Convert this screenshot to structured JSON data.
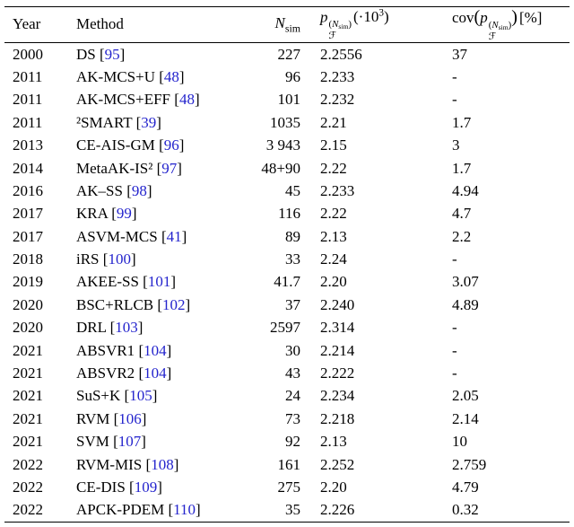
{
  "colors": {
    "citation": "#2424cd",
    "text": "#000000",
    "background": "#ffffff"
  },
  "table": {
    "headers": {
      "year": "Year",
      "method": "Method",
      "nsim": {
        "main": "N",
        "sub": "sim"
      },
      "pf": {
        "base": "p",
        "sub": "ℱ",
        "sup_open": "(",
        "sup_n": "N",
        "sup_nsub": "sim",
        "sup_close": ")",
        "tail_open": "(·10",
        "tail_exp": "3",
        "tail_close": ")"
      },
      "cov": {
        "fn": "cov",
        "open": "(",
        "base": "p",
        "sub": "ℱ",
        "sup_open": "(",
        "sup_n": "N",
        "sup_nsub": "sim",
        "sup_close": ")",
        "close": ")",
        "unit": "[%]"
      }
    },
    "rows": [
      {
        "year": "2000",
        "method": "DS",
        "cite": "95",
        "nsim": "227",
        "pf": "2.2556",
        "cov": "37"
      },
      {
        "year": "2011",
        "method": "AK-MCS+U",
        "cite": "48",
        "nsim": "96",
        "pf": "2.233",
        "cov": "-"
      },
      {
        "year": "2011",
        "method": "AK-MCS+EFF",
        "cite": "48",
        "nsim": "101",
        "pf": "2.232",
        "cov": "-"
      },
      {
        "year": "2011",
        "method": "²SMART",
        "cite": "39",
        "nsim": "1035",
        "pf": "2.21",
        "cov": "1.7"
      },
      {
        "year": "2013",
        "method": "CE-AIS-GM",
        "cite": "96",
        "nsim": "3 943",
        "pf": "2.15",
        "cov": "3"
      },
      {
        "year": "2014",
        "method": "MetaAK-IS²",
        "cite": "97",
        "nsim": "48+90",
        "pf": "2.22",
        "cov": "1.7"
      },
      {
        "year": "2016",
        "method": "AK–SS",
        "cite": "98",
        "nsim": "45",
        "pf": "2.233",
        "cov": "4.94"
      },
      {
        "year": "2017",
        "method": "KRA",
        "cite": "99",
        "nsim": "116",
        "pf": "2.22",
        "cov": "4.7"
      },
      {
        "year": "2017",
        "method": "ASVM-MCS",
        "cite": "41",
        "nsim": "89",
        "pf": "2.13",
        "cov": "2.2"
      },
      {
        "year": "2018",
        "method": "iRS",
        "cite": "100",
        "nsim": "33",
        "pf": "2.24",
        "cov": "-"
      },
      {
        "year": "2019",
        "method": "AKEE-SS",
        "cite": "101",
        "nsim": "41.7",
        "pf": "2.20",
        "cov": "3.07"
      },
      {
        "year": "2020",
        "method": "BSC+RLCB",
        "cite": "102",
        "nsim": "37",
        "pf": "2.240",
        "cov": "4.89"
      },
      {
        "year": "2020",
        "method": "DRL",
        "cite": "103",
        "nsim": "2597",
        "pf": "2.314",
        "cov": "-"
      },
      {
        "year": "2021",
        "method": "ABSVR1",
        "cite": "104",
        "nsim": "30",
        "pf": "2.214",
        "cov": "-"
      },
      {
        "year": "2021",
        "method": "ABSVR2",
        "cite": "104",
        "nsim": "43",
        "pf": "2.222",
        "cov": "-"
      },
      {
        "year": "2021",
        "method": "SuS+K",
        "cite": "105",
        "nsim": "24",
        "pf": "2.234",
        "cov": "2.05"
      },
      {
        "year": "2021",
        "method": "RVM",
        "cite": "106",
        "nsim": "73",
        "pf": "2.218",
        "cov": "2.14"
      },
      {
        "year": "2021",
        "method": "SVM",
        "cite": "107",
        "nsim": "92",
        "pf": "2.13",
        "cov": "10"
      },
      {
        "year": "2022",
        "method": "RVM-MIS",
        "cite": "108",
        "nsim": "161",
        "pf": "2.252",
        "cov": "2.759"
      },
      {
        "year": "2022",
        "method": "CE-DIS",
        "cite": "109",
        "nsim": "275",
        "pf": "2.20",
        "cov": "4.79"
      },
      {
        "year": "2022",
        "method": "APCK-PDEM",
        "cite": "110",
        "nsim": "35",
        "pf": "2.226",
        "cov": "0.32"
      }
    ]
  }
}
